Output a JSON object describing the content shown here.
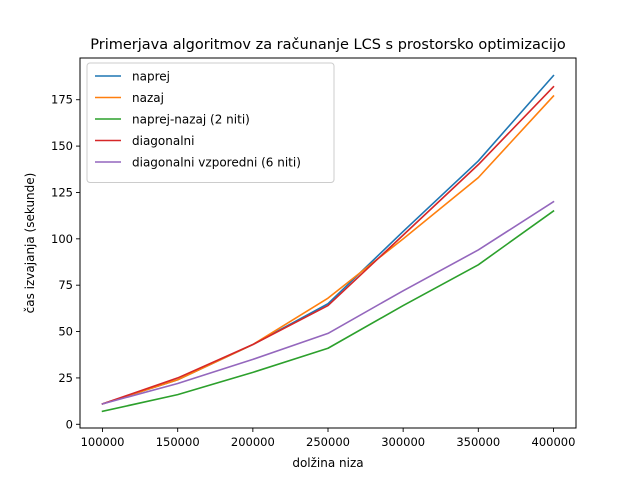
{
  "chart_data": {
    "type": "line",
    "title": "Primerjava algoritmov za računanje LCS s prostorsko optimizacijo",
    "xlabel": "dolžina niza",
    "ylabel": "čas izvajanja (sekunde)",
    "x": [
      100000,
      150000,
      200000,
      250000,
      300000,
      350000,
      400000
    ],
    "x_ticks": [
      "100000",
      "150000",
      "200000",
      "250000",
      "300000",
      "350000",
      "400000"
    ],
    "y_ticks": [
      "0",
      "25",
      "50",
      "75",
      "100",
      "125",
      "150",
      "175"
    ],
    "xlim": [
      85000,
      415000
    ],
    "ylim": [
      -2,
      197.5
    ],
    "grid": false,
    "legend_position": "top-left",
    "series": [
      {
        "name": "naprej",
        "color": "#1f77b4",
        "values": [
          11,
          24,
          43,
          65,
          104,
          142,
          188
        ]
      },
      {
        "name": "nazaj",
        "color": "#ff7f0e",
        "values": [
          11,
          24,
          43,
          68,
          100,
          133,
          177
        ]
      },
      {
        "name": "naprej-nazaj (2 niti)",
        "color": "#2ca02c",
        "values": [
          7,
          16,
          28,
          41,
          64,
          86,
          115
        ]
      },
      {
        "name": "diagonalni",
        "color": "#d62728",
        "values": [
          11,
          25,
          43,
          64,
          102,
          140,
          182
        ]
      },
      {
        "name": "diagonalni vzporedni (6 niti)",
        "color": "#9467bd",
        "values": [
          11,
          22,
          35,
          49,
          72,
          94,
          120
        ]
      }
    ]
  }
}
